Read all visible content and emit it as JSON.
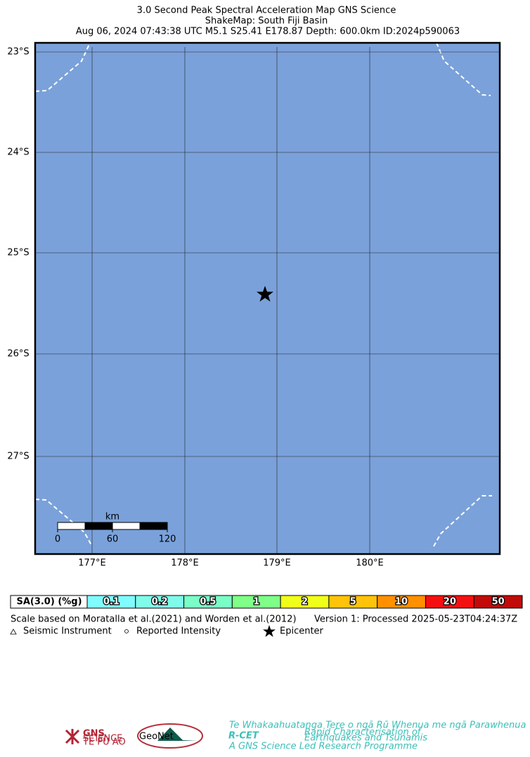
{
  "header": {
    "lines": [
      "3.0 Second Peak Spectral Acceleration Map GNS Science",
      "ShakeMap: South Fiji Basin",
      "Aug 06, 2024 07:43:38 UTC M5.1 S25.41 E178.87 Depth: 600.0km ID:2024p590063"
    ]
  },
  "map": {
    "lat_labels": [
      "23°S",
      "24°S",
      "25°S",
      "26°S",
      "27°S"
    ],
    "lon_labels": [
      "177°E",
      "178°E",
      "179°E",
      "180°E"
    ],
    "scale_bar": {
      "unit": "km",
      "labels": [
        "0",
        "60",
        "120"
      ]
    }
  },
  "legend": {
    "title": "SA(3.0) (%g)",
    "levels": [
      {
        "label": "0.1",
        "color": "#80fcff"
      },
      {
        "label": "0.2",
        "color": "#80fbe9"
      },
      {
        "label": "0.5",
        "color": "#7afdc6"
      },
      {
        "label": "1",
        "color": "#80ff88"
      },
      {
        "label": "2",
        "color": "#f0ff1a"
      },
      {
        "label": "5",
        "color": "#ffc30a"
      },
      {
        "label": "10",
        "color": "#ff9000"
      },
      {
        "label": "20",
        "color": "#f41010"
      },
      {
        "label": "50",
        "color": "#c20a0a"
      }
    ]
  },
  "notes": {
    "scale": "Scale based on Moratalla et al.(2021) and Worden et al.(2012)",
    "version": "Version 1: Processed 2025-05-23T04:24:37Z",
    "symbols": [
      "Seismic Instrument",
      "Reported Intensity",
      "Epicenter"
    ]
  },
  "logos": {
    "gns": "GNS",
    "gns_sub": "SCIENCE",
    "gns_maori": "TE PŪ AO",
    "geonet": "GeoNet",
    "rcet": "R-CET",
    "rcet_top": "Te Whakaahuatanga Tere o ngā Rū Whenua me ngā Parawhenua",
    "rcet_sub1": "Rapid Characterisation of",
    "rcet_sub2": "Earthquakes and Tsunamis",
    "rcet_bottom": "A GNS Science Led Research Programme"
  }
}
